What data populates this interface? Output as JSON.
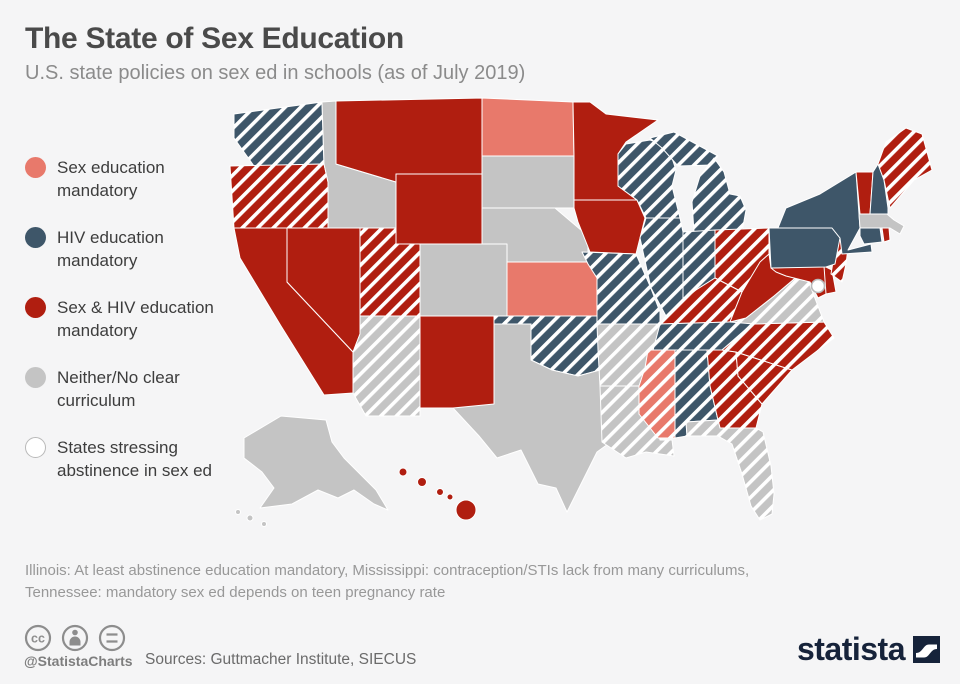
{
  "header": {
    "title": "The State of Sex Education",
    "subtitle": "U.S. state policies on sex ed in schools (as of July 2019)"
  },
  "legend": {
    "items": [
      {
        "id": "sex_ed",
        "label": "Sex education\nmandatory",
        "fill": "#e8796b",
        "outline": null
      },
      {
        "id": "hiv_ed",
        "label": "HIV education\nmandatory",
        "fill": "#3e5669",
        "outline": null
      },
      {
        "id": "sex_hiv_ed",
        "label": "Sex & HIV education\nmandatory",
        "fill": "#b01e10",
        "outline": null
      },
      {
        "id": "neither",
        "label": "Neither/No clear\ncurriculum",
        "fill": "#c4c4c4",
        "outline": null
      },
      {
        "id": "abstinence",
        "label": "States stressing\nabstinence in sex ed",
        "fill": "#ffffff",
        "outline": "#b9b9b9"
      }
    ]
  },
  "footnote": {
    "lines": [
      "Illinois: At least abstinence education mandatory, Mississippi: contraception/STIs lack from many curriculums,",
      "Tennessee: mandatory sex ed depends on teen pregnancy rate"
    ]
  },
  "attribution": {
    "handle": "@StatistaCharts",
    "license_icons": [
      "cc-icon",
      "attribution-person-icon",
      "no-derivs-equals-icon"
    ],
    "sources": "Sources: Guttmacher Institute, SIECUS"
  },
  "branding": {
    "logo_text": "statista"
  },
  "colors": {
    "background": "#f5f5f6",
    "state_border": "#ffffff",
    "hatch_stripe": "#ffffff",
    "title": "#4a4a4a",
    "subtitle": "#8b8b8b",
    "footnote": "#989898",
    "logo_navy": "#16233a",
    "icon_gray": "#8d8d8d"
  },
  "chart_data": {
    "type": "choropleth_map",
    "region": "United States",
    "title": "The State of Sex Education",
    "as_of": "July 2019",
    "legend_position": "left",
    "hatch_meaning": "White diagonal stripes = state stresses abstinence in sex ed",
    "categories": [
      {
        "id": "sex_ed",
        "label": "Sex education mandatory",
        "color": "#e8796b"
      },
      {
        "id": "hiv_ed",
        "label": "HIV education mandatory",
        "color": "#3e5669"
      },
      {
        "id": "sex_hiv_ed",
        "label": "Sex & HIV education mandatory",
        "color": "#b01e10"
      },
      {
        "id": "neither",
        "label": "Neither/No clear curriculum",
        "color": "#c4c4c4"
      },
      {
        "id": "abstinence",
        "label": "States stressing abstinence in sex ed",
        "color": "#ffffff"
      }
    ],
    "states": {
      "WA": {
        "name": "Washington",
        "category": "hiv_ed",
        "abstinence_stressed": true
      },
      "OR": {
        "name": "Oregon",
        "category": "sex_hiv_ed",
        "abstinence_stressed": true
      },
      "CA": {
        "name": "California",
        "category": "sex_hiv_ed",
        "abstinence_stressed": false
      },
      "NV": {
        "name": "Nevada",
        "category": "sex_hiv_ed",
        "abstinence_stressed": false
      },
      "ID": {
        "name": "Idaho",
        "category": "neither",
        "abstinence_stressed": false
      },
      "MT": {
        "name": "Montana",
        "category": "sex_hiv_ed",
        "abstinence_stressed": false
      },
      "WY": {
        "name": "Wyoming",
        "category": "sex_hiv_ed",
        "abstinence_stressed": false
      },
      "UT": {
        "name": "Utah",
        "category": "sex_hiv_ed",
        "abstinence_stressed": true
      },
      "CO": {
        "name": "Colorado",
        "category": "neither",
        "abstinence_stressed": false
      },
      "AZ": {
        "name": "Arizona",
        "category": "neither",
        "abstinence_stressed": true
      },
      "NM": {
        "name": "New Mexico",
        "category": "sex_hiv_ed",
        "abstinence_stressed": false
      },
      "ND": {
        "name": "North Dakota",
        "category": "sex_ed",
        "abstinence_stressed": false
      },
      "SD": {
        "name": "South Dakota",
        "category": "neither",
        "abstinence_stressed": false
      },
      "NE": {
        "name": "Nebraska",
        "category": "neither",
        "abstinence_stressed": false
      },
      "KS": {
        "name": "Kansas",
        "category": "sex_ed",
        "abstinence_stressed": false
      },
      "OK": {
        "name": "Oklahoma",
        "category": "hiv_ed",
        "abstinence_stressed": true
      },
      "TX": {
        "name": "Texas",
        "category": "neither",
        "abstinence_stressed": false
      },
      "MN": {
        "name": "Minnesota",
        "category": "sex_hiv_ed",
        "abstinence_stressed": false
      },
      "IA": {
        "name": "Iowa",
        "category": "sex_hiv_ed",
        "abstinence_stressed": false
      },
      "MO": {
        "name": "Missouri",
        "category": "hiv_ed",
        "abstinence_stressed": true
      },
      "WI": {
        "name": "Wisconsin",
        "category": "hiv_ed",
        "abstinence_stressed": true
      },
      "IL": {
        "name": "Illinois",
        "category": "hiv_ed",
        "abstinence_stressed": true
      },
      "MI": {
        "name": "Michigan",
        "category": "hiv_ed",
        "abstinence_stressed": true
      },
      "IN": {
        "name": "Indiana",
        "category": "hiv_ed",
        "abstinence_stressed": true
      },
      "OH": {
        "name": "Ohio",
        "category": "sex_hiv_ed",
        "abstinence_stressed": true
      },
      "KY": {
        "name": "Kentucky",
        "category": "sex_hiv_ed",
        "abstinence_stressed": true
      },
      "TN": {
        "name": "Tennessee",
        "category": "hiv_ed",
        "abstinence_stressed": true
      },
      "AR": {
        "name": "Arkansas",
        "category": "neither",
        "abstinence_stressed": true
      },
      "LA": {
        "name": "Louisiana",
        "category": "neither",
        "abstinence_stressed": true
      },
      "MS": {
        "name": "Mississippi",
        "category": "sex_ed",
        "abstinence_stressed": true
      },
      "AL": {
        "name": "Alabama",
        "category": "hiv_ed",
        "abstinence_stressed": true
      },
      "GA": {
        "name": "Georgia",
        "category": "sex_hiv_ed",
        "abstinence_stressed": true
      },
      "FL": {
        "name": "Florida",
        "category": "neither",
        "abstinence_stressed": true
      },
      "SC": {
        "name": "South Carolina",
        "category": "sex_hiv_ed",
        "abstinence_stressed": true
      },
      "NC": {
        "name": "North Carolina",
        "category": "sex_hiv_ed",
        "abstinence_stressed": true
      },
      "VA": {
        "name": "Virginia",
        "category": "neither",
        "abstinence_stressed": true
      },
      "WV": {
        "name": "West Virginia",
        "category": "sex_hiv_ed",
        "abstinence_stressed": false
      },
      "MD": {
        "name": "Maryland",
        "category": "sex_hiv_ed",
        "abstinence_stressed": false
      },
      "DE": {
        "name": "Delaware",
        "category": "sex_hiv_ed",
        "abstinence_stressed": false
      },
      "NJ": {
        "name": "New Jersey",
        "category": "sex_hiv_ed",
        "abstinence_stressed": true
      },
      "PA": {
        "name": "Pennsylvania",
        "category": "hiv_ed",
        "abstinence_stressed": false
      },
      "NY": {
        "name": "New York",
        "category": "hiv_ed",
        "abstinence_stressed": false
      },
      "CT": {
        "name": "Connecticut",
        "category": "hiv_ed",
        "abstinence_stressed": false
      },
      "RI": {
        "name": "Rhode Island",
        "category": "sex_hiv_ed",
        "abstinence_stressed": false
      },
      "MA": {
        "name": "Massachusetts",
        "category": "neither",
        "abstinence_stressed": false
      },
      "VT": {
        "name": "Vermont",
        "category": "sex_hiv_ed",
        "abstinence_stressed": false
      },
      "NH": {
        "name": "New Hampshire",
        "category": "hiv_ed",
        "abstinence_stressed": false
      },
      "ME": {
        "name": "Maine",
        "category": "sex_hiv_ed",
        "abstinence_stressed": true
      },
      "AK": {
        "name": "Alaska",
        "category": "neither",
        "abstinence_stressed": false
      },
      "HI": {
        "name": "Hawaii",
        "category": "sex_hiv_ed",
        "abstinence_stressed": false
      },
      "DC": {
        "name": "District of Columbia",
        "category": "abstinence",
        "abstinence_stressed": true
      }
    }
  }
}
